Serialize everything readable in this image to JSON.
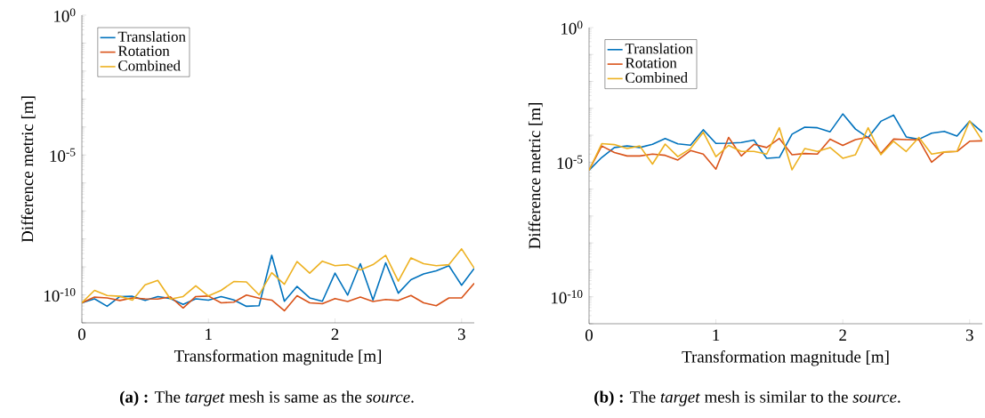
{
  "chart_data": [
    {
      "type": "line",
      "xlabel": "Transformation magnitude [m]",
      "ylabel": "Difference metric [m]",
      "log": "y",
      "legend": "top left",
      "x": [
        0,
        0.1,
        0.2,
        0.3,
        0.4,
        0.5,
        0.6,
        0.7,
        0.8,
        0.9,
        1.0,
        1.1,
        1.2,
        1.3,
        1.4,
        1.5,
        1.6,
        1.7,
        1.8,
        1.9,
        2.0,
        2.1,
        2.2,
        2.3,
        2.4,
        2.5,
        2.6,
        2.7,
        2.8,
        2.9,
        3.0,
        3.1
      ],
      "xlim": [
        0,
        3.1
      ],
      "xticks": [
        0,
        1,
        2,
        3
      ],
      "ylim": [
        1e-11,
        1
      ],
      "yticks": [
        {
          "value": 1e-11,
          "label": null
        },
        {
          "value": 1e-10,
          "label": "10$^{-10}$"
        },
        {
          "value": 1e-09,
          "label": null
        },
        {
          "value": 1e-08,
          "label": null
        },
        {
          "value": 1e-07,
          "label": null
        },
        {
          "value": 1e-06,
          "label": null
        },
        {
          "value": 1e-05,
          "label": "10$^{-5}$"
        },
        {
          "value": 0.0001,
          "label": null
        },
        {
          "value": 0.001,
          "label": null
        },
        {
          "value": 0.01,
          "label": null
        },
        {
          "value": 0.1,
          "label": null
        },
        {
          "value": 1,
          "label": "10$^{0}$"
        }
      ],
      "series": [
        {
          "name": "Translation",
          "color": "#0072bd",
          "values": [
            5.2e-11,
            7.2e-11,
            3.9e-11,
            8.7e-11,
            8.9e-11,
            6.3e-11,
            8.7e-11,
            7.4e-11,
            4.6e-11,
            7.2e-11,
            6.5e-11,
            8.7e-11,
            6.6e-11,
            3.9e-11,
            4.1e-11,
            2.6e-09,
            5.9e-11,
            2e-10,
            7.8e-11,
            5.9e-11,
            6e-10,
            9.8e-11,
            1.3e-09,
            6.6e-11,
            1.4e-09,
            1.15e-10,
            3.5e-10,
            5.6e-10,
            7.2e-10,
            1.1e-09,
            2.2e-10,
            8.9e-10
          ]
        },
        {
          "name": "Rotation",
          "color": "#d95319",
          "values": [
            5.2e-11,
            8.3e-11,
            7.8e-11,
            6.3e-11,
            7.8e-11,
            7.2e-11,
            7.1e-11,
            8.5e-11,
            3.4e-11,
            8.7e-11,
            9.1e-11,
            5.2e-11,
            5.5e-11,
            9.8e-11,
            7.6e-11,
            6.5e-11,
            2.7e-11,
            9.3e-11,
            5.2e-11,
            4.8e-11,
            7.4e-11,
            5.8e-11,
            8.3e-11,
            5.8e-11,
            6.8e-11,
            6.3e-11,
            9.5e-11,
            5.2e-11,
            4.1e-11,
            7.8e-11,
            7.8e-11,
            2.6e-10
          ]
        },
        {
          "name": "Combined",
          "color": "#edb120",
          "values": [
            5.2e-11,
            1.45e-10,
            9.5e-11,
            8.9e-11,
            6.5e-11,
            2.3e-10,
            3.3e-10,
            7.1e-11,
            8.7e-11,
            2.1e-10,
            9.1e-11,
            1.45e-10,
            3e-10,
            2.9e-10,
            1e-10,
            6.2e-10,
            2.4e-10,
            1.55e-09,
            6e-10,
            1.6e-09,
            1.1e-09,
            1.2e-09,
            7.8e-10,
            1.2e-09,
            2.6e-09,
            3.1e-10,
            2.1e-09,
            1.3e-09,
            1.1e-09,
            1.2e-09,
            4.4e-09,
            8.9e-10
          ]
        }
      ],
      "annotations": [
        "**(a) :** The *target* mesh is same as the *source*."
      ]
    },
    {
      "type": "line",
      "xlabel": "Transformation magnitude [m]",
      "ylabel": "Difference metric [m]",
      "log": "y",
      "legend": "top left",
      "x": [
        0,
        0.1,
        0.2,
        0.3,
        0.4,
        0.5,
        0.6,
        0.7,
        0.8,
        0.9,
        1.0,
        1.1,
        1.2,
        1.3,
        1.4,
        1.5,
        1.6,
        1.7,
        1.8,
        1.9,
        2.0,
        2.1,
        2.2,
        2.3,
        2.4,
        2.5,
        2.6,
        2.7,
        2.8,
        2.9,
        3.0,
        3.1
      ],
      "xlim": [
        0,
        3.1
      ],
      "xticks": [
        0,
        1,
        2,
        3
      ],
      "ylim": [
        1e-11,
        1
      ],
      "yticks": [
        {
          "value": 1e-11,
          "label": null
        },
        {
          "value": 1e-10,
          "label": "10$^{-10}$"
        },
        {
          "value": 1e-09,
          "label": null
        },
        {
          "value": 1e-08,
          "label": null
        },
        {
          "value": 1e-07,
          "label": null
        },
        {
          "value": 1e-06,
          "label": null
        },
        {
          "value": 1e-05,
          "label": "10$^{-5}$"
        },
        {
          "value": 0.0001,
          "label": null
        },
        {
          "value": 0.001,
          "label": null
        },
        {
          "value": 0.01,
          "label": null
        },
        {
          "value": 0.1,
          "label": null
        },
        {
          "value": 1,
          "label": "10$^{0}$"
        }
      ],
      "series": [
        {
          "name": "Translation",
          "color": "#0072bd",
          "values": [
            5e-06,
            1.5e-05,
            3.5e-05,
            4e-05,
            3.5e-05,
            4.6e-05,
            7.6e-05,
            4.8e-05,
            4.3e-05,
            0.00016,
            5e-05,
            5.1e-05,
            5.4e-05,
            6.6e-05,
            1.4e-05,
            1.5e-05,
            0.00011,
            0.0002,
            0.00019,
            0.000135,
            0.00062,
            0.00017,
            8.1e-05,
            0.00033,
            0.00056,
            8.7e-05,
            7.1e-05,
            0.00012,
            0.00014,
            9.3e-05,
            0.00033,
            0.00013
          ]
        },
        {
          "name": "Rotation",
          "color": "#d95319",
          "values": [
            5e-06,
            4e-05,
            2.3e-05,
            1.7e-05,
            1.7e-05,
            2e-05,
            1.8e-05,
            1.2e-05,
            2.7e-05,
            2e-05,
            5.5e-06,
            8.3e-05,
            1.7e-05,
            4.6e-05,
            3.5e-05,
            7.6e-05,
            1.9e-05,
            2.1e-05,
            2e-05,
            7.2e-05,
            4.2e-05,
            6.9e-05,
            8.5e-05,
            2.1e-05,
            7.2e-05,
            6.9e-05,
            6.8e-05,
            1e-05,
            2.4e-05,
            2.5e-05,
            6e-05,
            6.2e-05
          ]
        },
        {
          "name": "Combined",
          "color": "#edb120",
          "values": [
            5e-06,
            4.9e-05,
            4.5e-05,
            3.2e-05,
            4e-05,
            8.5e-06,
            4.7e-05,
            1.6e-05,
            3.2e-05,
            0.00013,
            1.6e-05,
            4.2e-05,
            2.5e-05,
            2.5e-05,
            2e-05,
            0.00019,
            5.2e-06,
            3.2e-05,
            2.5e-05,
            3.5e-05,
            1.4e-05,
            1.9e-05,
            0.00019,
            1.9e-05,
            6e-05,
            2.5e-05,
            8.3e-05,
            2e-05,
            2.4e-05,
            2.5e-05,
            0.00034,
            6.3e-05
          ]
        }
      ],
      "annotations": [
        "**(b) :** The *target* mesh is similar to the *source*."
      ]
    }
  ]
}
